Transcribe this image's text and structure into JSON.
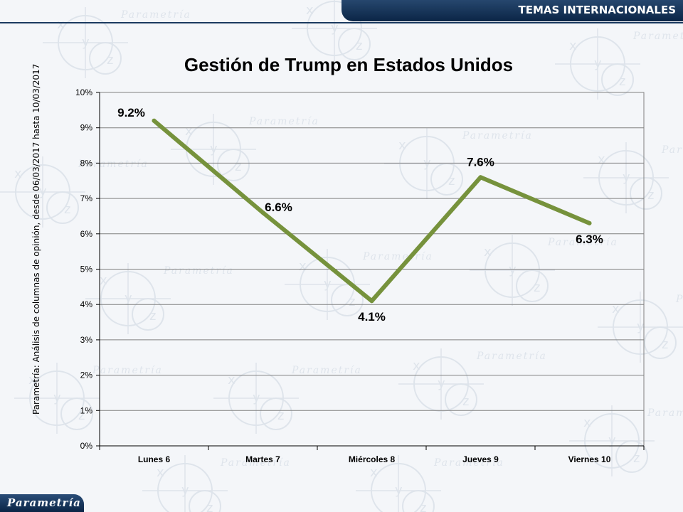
{
  "header": {
    "section_label": "TEMAS INTERNACIONALES"
  },
  "side_caption": "Parametría: Análisis de columnas de opinión, desde 06/03/2017  hasta 10/03/2017",
  "footer": {
    "brand": "Parametría"
  },
  "watermark": {
    "text": "Parametría",
    "glyphs": [
      "x",
      "y",
      "z"
    ]
  },
  "colors": {
    "line": "#76923c",
    "header": "#0b2546",
    "grid": "#7f7f7f"
  },
  "chart_data": {
    "type": "line",
    "title": "Gestión de Trump en Estados Unidos",
    "categories": [
      "Lunes 6",
      "Martes 7",
      "Miércoles 8",
      "Jueves 9",
      "Viernes 10"
    ],
    "values": [
      9.2,
      6.6,
      4.1,
      7.6,
      6.3
    ],
    "data_labels": [
      "9.2%",
      "6.6%",
      "4.1%",
      "7.6%",
      "6.3%"
    ],
    "ylim": [
      0,
      10
    ],
    "yticks": [
      0,
      1,
      2,
      3,
      4,
      5,
      6,
      7,
      8,
      9,
      10
    ],
    "ytick_labels": [
      "0%",
      "1%",
      "2%",
      "3%",
      "4%",
      "5%",
      "6%",
      "7%",
      "8%",
      "9%",
      "10%"
    ],
    "xlabel": "",
    "ylabel": "",
    "grid": true,
    "legend": "none"
  }
}
